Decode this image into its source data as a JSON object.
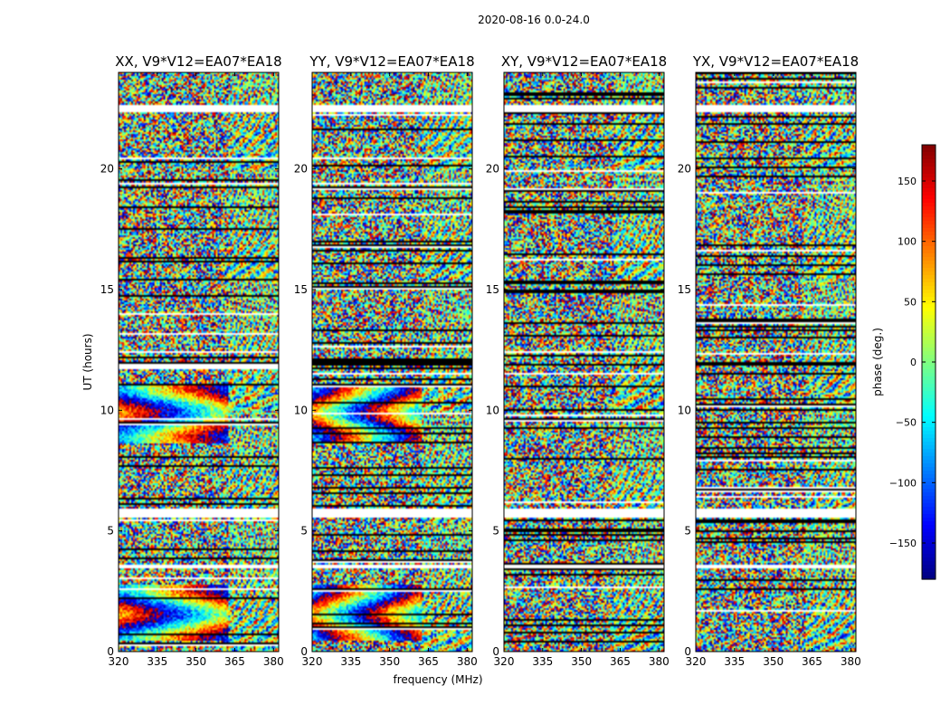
{
  "figure": {
    "suptitle": "2020-08-16 0.0-24.0",
    "xlabel": "frequency (MHz)",
    "ylabel": "UT (hours)"
  },
  "colorbar": {
    "label": "phase (deg.)",
    "range": [
      -180,
      180
    ],
    "ticks": [
      150,
      100,
      50,
      0,
      -50,
      -100,
      -150
    ],
    "tick_labels": [
      "150",
      "100",
      "50",
      "0",
      "−50",
      "−100",
      "−150"
    ],
    "colormap": "jet"
  },
  "chart_data": {
    "type": "heatmap",
    "xlim": [
      320,
      382
    ],
    "ylim": [
      0,
      24
    ],
    "xticks": [
      320,
      335,
      350,
      365,
      380
    ],
    "yticks": [
      0,
      5,
      10,
      15,
      20
    ],
    "xtick_labels": [
      "320",
      "335",
      "350",
      "365",
      "380"
    ],
    "ytick_labels": [
      "0",
      "5",
      "10",
      "15",
      "20"
    ],
    "blank_hours": [
      [
        22.4,
        22.6
      ],
      [
        5.6,
        5.9
      ],
      [
        3.5,
        3.6
      ]
    ],
    "panels": [
      {
        "title": "XX, V9*V12=EA07*EA18",
        "pattern": "xx"
      },
      {
        "title": "YY, V9*V12=EA07*EA18",
        "pattern": "yy"
      },
      {
        "title": "XY, V9*V12=EA07*EA18",
        "pattern": "noise"
      },
      {
        "title": "YX, V9*V12=EA07*EA18",
        "pattern": "noise"
      }
    ]
  }
}
